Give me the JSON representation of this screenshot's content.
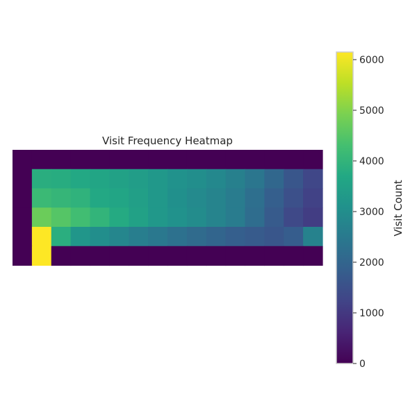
{
  "chart_data": {
    "type": "heatmap",
    "title": "Visit Frequency Heatmap",
    "xlabel": "",
    "ylabel": "",
    "grid": false,
    "colormap": "viridis",
    "rows": 6,
    "cols": 16,
    "values": [
      [
        0,
        0,
        0,
        0,
        0,
        0,
        0,
        0,
        0,
        0,
        0,
        0,
        0,
        0,
        0,
        0
      ],
      [
        0,
        3830,
        3800,
        3700,
        3600,
        3500,
        3400,
        3250,
        3100,
        3000,
        2850,
        2650,
        2400,
        2050,
        1650,
        1300
      ],
      [
        0,
        4150,
        4050,
        3950,
        3700,
        3600,
        3450,
        3250,
        3050,
        2900,
        2750,
        2550,
        2250,
        1850,
        1500,
        1200
      ],
      [
        0,
        4750,
        4500,
        4250,
        4000,
        3750,
        3500,
        3250,
        3100,
        2950,
        2750,
        2550,
        2200,
        1750,
        1350,
        1100
      ],
      [
        0,
        6150,
        3850,
        3200,
        3000,
        2800,
        2600,
        2450,
        2300,
        2150,
        2000,
        1850,
        1750,
        1650,
        1800,
        2700
      ],
      [
        0,
        6150,
        0,
        0,
        0,
        0,
        0,
        0,
        0,
        0,
        0,
        0,
        0,
        0,
        0,
        0
      ]
    ],
    "colorbar": {
      "label": "Visit Count",
      "min": 0,
      "max": 6150,
      "ticks": [
        0,
        1000,
        2000,
        3000,
        4000,
        5000,
        6000
      ],
      "tick_labels": [
        "0",
        "1000",
        "2000",
        "3000",
        "4000",
        "5000",
        "6000"
      ]
    }
  }
}
